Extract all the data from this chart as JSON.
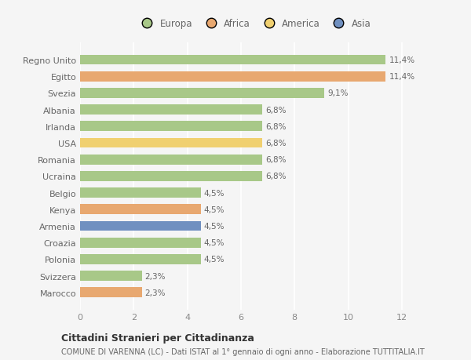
{
  "categories": [
    "Regno Unito",
    "Egitto",
    "Svezia",
    "Albania",
    "Irlanda",
    "USA",
    "Romania",
    "Ucraina",
    "Belgio",
    "Kenya",
    "Armenia",
    "Croazia",
    "Polonia",
    "Svizzera",
    "Marocco"
  ],
  "values": [
    11.4,
    11.4,
    9.1,
    6.8,
    6.8,
    6.8,
    6.8,
    6.8,
    4.5,
    4.5,
    4.5,
    4.5,
    4.5,
    2.3,
    2.3
  ],
  "labels": [
    "11,4%",
    "11,4%",
    "9,1%",
    "6,8%",
    "6,8%",
    "6,8%",
    "6,8%",
    "6,8%",
    "4,5%",
    "4,5%",
    "4,5%",
    "4,5%",
    "4,5%",
    "2,3%",
    "2,3%"
  ],
  "colors": [
    "#a8c888",
    "#e8a870",
    "#a8c888",
    "#a8c888",
    "#a8c888",
    "#f0d070",
    "#a8c888",
    "#a8c888",
    "#a8c888",
    "#e8a870",
    "#7090c0",
    "#a8c888",
    "#a8c888",
    "#a8c888",
    "#e8a870"
  ],
  "legend_labels": [
    "Europa",
    "Africa",
    "America",
    "Asia"
  ],
  "legend_colors": [
    "#a8c888",
    "#e8a870",
    "#f0d070",
    "#7090c0"
  ],
  "xlim": [
    0,
    13
  ],
  "xticks": [
    0,
    2,
    4,
    6,
    8,
    10,
    12
  ],
  "title": "Cittadini Stranieri per Cittadinanza",
  "subtitle": "COMUNE DI VARENNA (LC) - Dati ISTAT al 1° gennaio di ogni anno - Elaborazione TUTTITALIA.IT",
  "bg_color": "#f5f5f5",
  "grid_color": "#ffffff",
  "bar_height": 0.6
}
